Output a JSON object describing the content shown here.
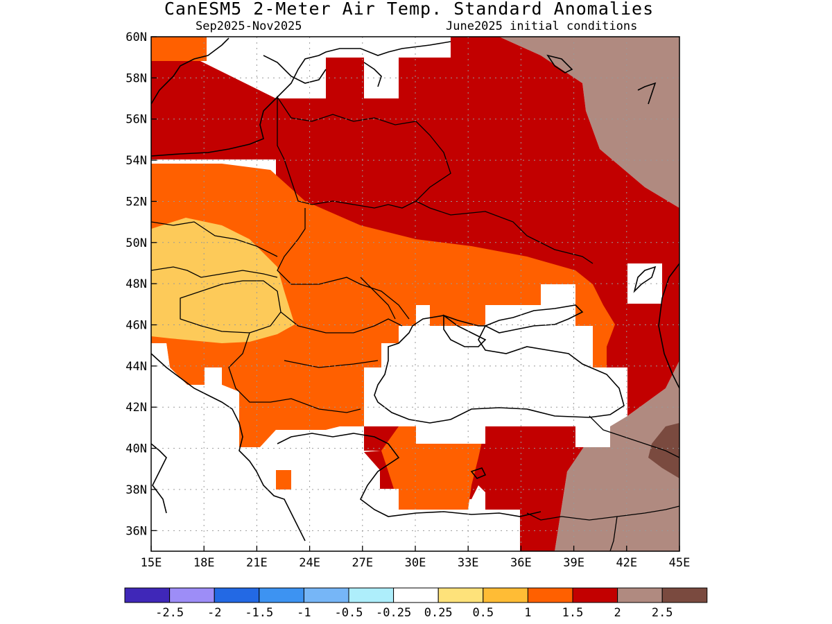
{
  "title": "CanESM5 2-Meter Air Temp. Standard Anomalies",
  "subtitle_left": "Sep2025-Nov2025",
  "subtitle_right": "June2025 initial conditions",
  "map": {
    "lon_range": [
      15,
      45
    ],
    "lat_range": [
      35,
      60
    ],
    "lon_ticks": [
      "15E",
      "18E",
      "21E",
      "24E",
      "27E",
      "30E",
      "33E",
      "36E",
      "39E",
      "42E",
      "45E"
    ],
    "lat_ticks": [
      "36N",
      "38N",
      "40N",
      "42N",
      "44N",
      "46N",
      "48N",
      "50N",
      "52N",
      "54N",
      "56N",
      "58N",
      "60N"
    ],
    "gridlines": "dotted"
  },
  "colorbar": {
    "colors": [
      "#3f27b8",
      "#9d8df7",
      "#2369e4",
      "#3d93f2",
      "#76b6f7",
      "#aeeefb",
      "#ffffff",
      "#fee27a",
      "#ffbc35",
      "#ff6000",
      "#c20000",
      "#b08a80",
      "#7a4a3f"
    ],
    "labels": [
      "-2.5",
      "-2",
      "-1.5",
      "-1",
      "-0.5",
      "-0.25",
      "0.25",
      "0.5",
      "1",
      "1.5",
      "2",
      "2.5"
    ]
  },
  "field_colors": {
    "c05": "#fdca59",
    "c1": "#ff6000",
    "c15": "#c20000",
    "c2": "#b08a80",
    "c25": "#7a4a3f"
  }
}
